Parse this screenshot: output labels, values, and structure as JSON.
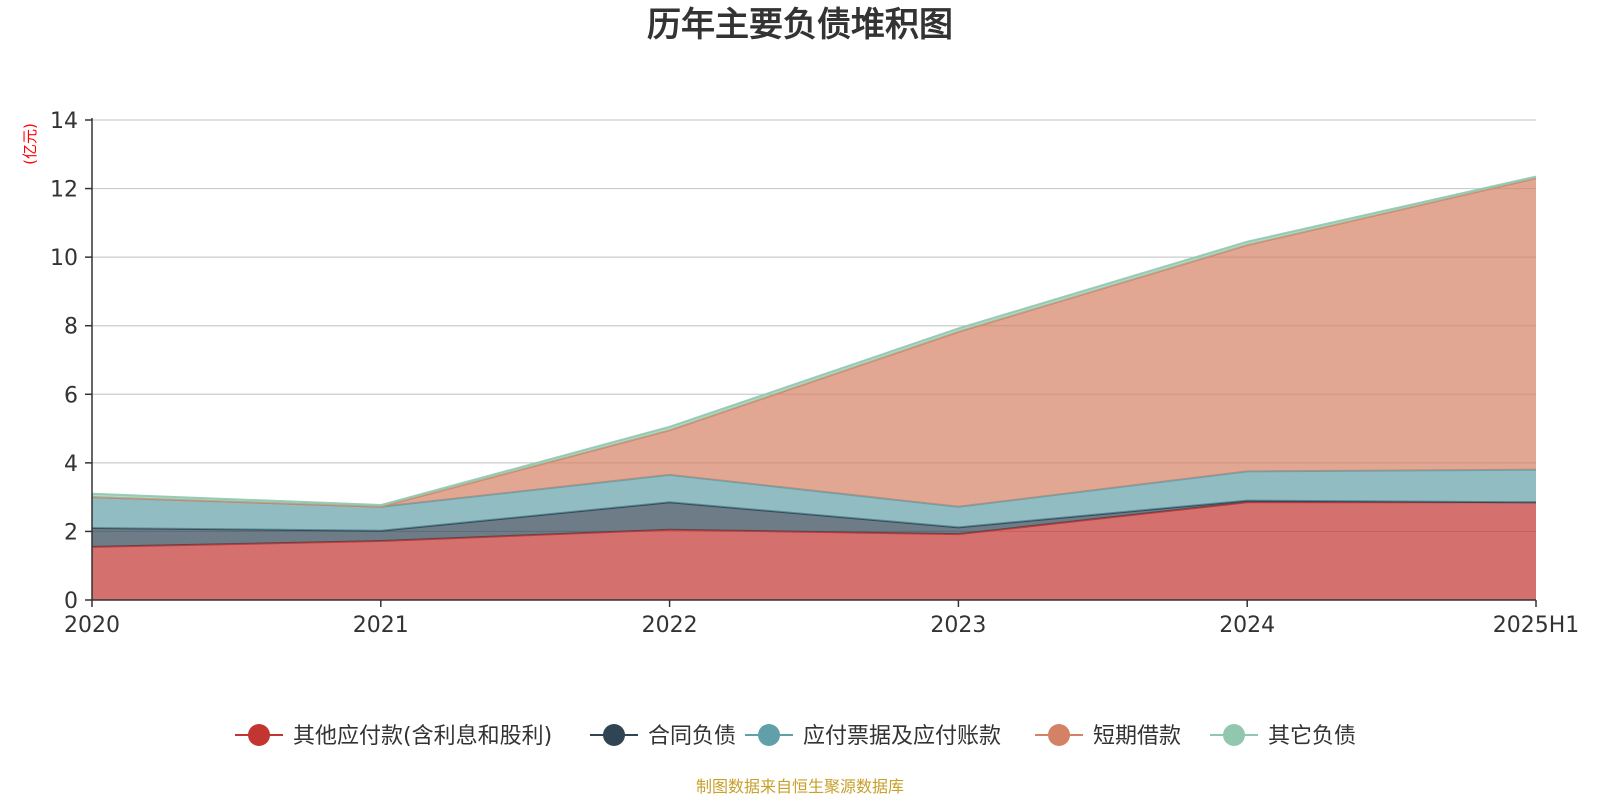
{
  "chart_data": {
    "type": "area",
    "stacked": true,
    "title": "历年主要负债堆积图",
    "unit_label": "(亿元)",
    "categories": [
      "2020",
      "2021",
      "2022",
      "2023",
      "2024",
      "2025H1"
    ],
    "y_ticks": [
      "0",
      "2",
      "4",
      "6",
      "8",
      "10",
      "12",
      "14"
    ],
    "ylim": [
      0,
      14
    ],
    "grid": true,
    "legend_position": "bottom",
    "series": [
      {
        "name": "其他应付款(含利息和股利)",
        "color": "#c23531",
        "values": [
          1.55,
          1.72,
          2.05,
          1.92,
          2.85,
          2.85
        ]
      },
      {
        "name": "合同负债",
        "color": "#2f4554",
        "values": [
          0.55,
          0.3,
          0.8,
          0.2,
          0.05,
          0.0
        ]
      },
      {
        "name": "应付票据及应付账款",
        "color": "#61a0a8",
        "values": [
          0.9,
          0.7,
          0.8,
          0.6,
          0.85,
          0.95
        ]
      },
      {
        "name": "短期借款",
        "color": "#d48265",
        "values": [
          0.0,
          0.0,
          1.3,
          5.1,
          6.6,
          8.5
        ]
      },
      {
        "name": "其它负债",
        "color": "#91c7ae",
        "values": [
          0.1,
          0.05,
          0.1,
          0.1,
          0.1,
          0.05
        ]
      }
    ],
    "source": "制图数据来自恒生聚源数据库"
  },
  "colors": {
    "unit": "#ff0000",
    "source": "#c8a02a",
    "grid": "#cccccc",
    "axis": "#333333"
  }
}
